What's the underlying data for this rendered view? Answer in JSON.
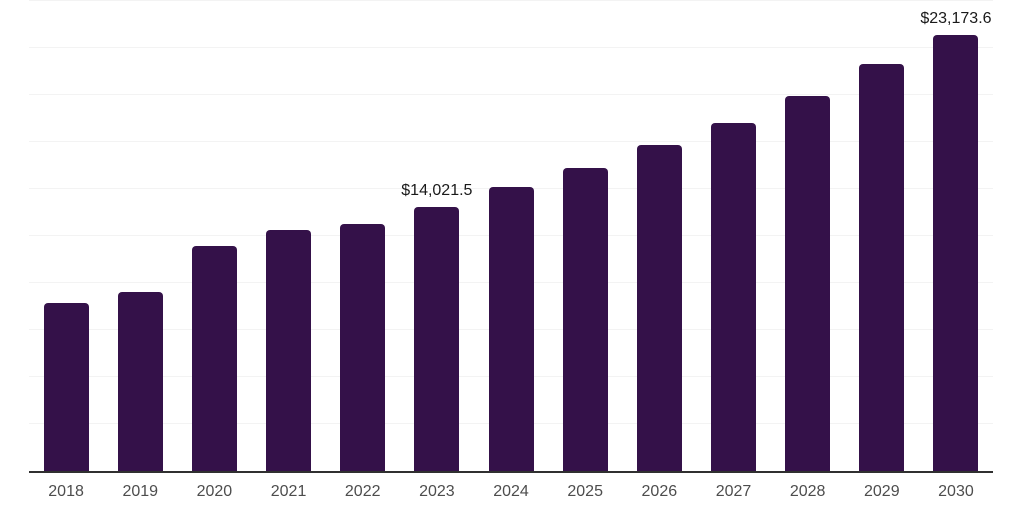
{
  "chart_data": {
    "type": "bar",
    "title": "",
    "xlabel": "",
    "ylabel": "",
    "categories": [
      "2018",
      "2019",
      "2020",
      "2021",
      "2022",
      "2023",
      "2024",
      "2025",
      "2026",
      "2027",
      "2028",
      "2029",
      "2030"
    ],
    "values": [
      8950,
      9530,
      11970,
      12820,
      13140,
      14021.5,
      15105,
      16110,
      17335,
      18500,
      19935,
      21635,
      23173.6
    ],
    "labeled_points": [
      {
        "category": "2023",
        "label": "$14,021.5"
      },
      {
        "category": "2030",
        "label": "$23,173.6"
      }
    ],
    "ylim": [
      0,
      25000
    ],
    "gridline_step": 2500,
    "grid": "horizontal",
    "legend": "none",
    "colors": {
      "bar": "#341149",
      "gridline": "#f3f3f3",
      "axis_line": "#303030",
      "data_label": "#1a1a1a",
      "tick_label": "#4d4d4d",
      "background": "#ffffff"
    }
  }
}
